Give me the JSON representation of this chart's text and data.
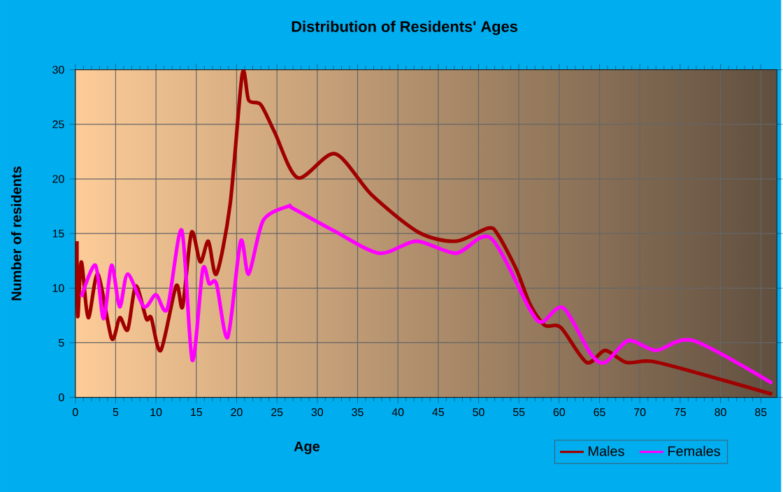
{
  "chart_data": {
    "type": "line",
    "title": "Distribution of Residents' Ages",
    "xlabel": "Age",
    "ylabel": "Number of residents",
    "xlim": [
      0,
      87
    ],
    "xticks": [
      0,
      5,
      10,
      15,
      20,
      25,
      30,
      35,
      40,
      45,
      50,
      55,
      60,
      65,
      70,
      75,
      80,
      85
    ],
    "ylim": [
      0,
      30
    ],
    "yticks": [
      0,
      5,
      10,
      15,
      20,
      25,
      30
    ],
    "grid": true,
    "legend": "bottom right",
    "marker": "none",
    "line_style": "solid",
    "series": [
      {
        "name": "Males",
        "color": "#a00000",
        "x": [
          0.2,
          0.3,
          0.75,
          1.6,
          2.8,
          4.5,
          5.5,
          6.5,
          7.5,
          8.8,
          9.4,
          10.6,
          12.5,
          13.3,
          14.4,
          15.5,
          16.5,
          17.5,
          19.2,
          20.7,
          21.5,
          23,
          24.7,
          27.6,
          32.2,
          36.8,
          42.6,
          47.2,
          51.2,
          52.4,
          54.7,
          56.4,
          58.2,
          60.2,
          63.4,
          65.7,
          68.3,
          71.5,
          77.8,
          86.4
        ],
        "values": [
          14.3,
          7.4,
          12.4,
          7.3,
          11.3,
          5.4,
          7.3,
          6.2,
          10.2,
          7.2,
          7.3,
          4.3,
          10.2,
          8.3,
          15.1,
          12.4,
          14.3,
          11.3,
          17.7,
          29.6,
          27.2,
          26.8,
          24.3,
          20.1,
          22.3,
          18.5,
          15.1,
          14.3,
          15.5,
          14.9,
          11.7,
          8.5,
          6.6,
          6.4,
          3.2,
          4.3,
          3.2,
          3.3,
          2.1,
          0.3
        ]
      },
      {
        "name": "Females",
        "color": "#ff00ff",
        "x": [
          0.75,
          2.5,
          3.5,
          4.5,
          5.5,
          6.5,
          8.5,
          10,
          11.4,
          13.2,
          14.5,
          15.8,
          16.6,
          17.5,
          18.9,
          20.5,
          21.5,
          23.3,
          26.4,
          27,
          32.2,
          37.7,
          42.3,
          47.2,
          51.5,
          56.4,
          57.9,
          60.5,
          63.9,
          65.7,
          68.6,
          72,
          76.6,
          86.4
        ],
        "values": [
          9.2,
          12.1,
          7.2,
          12.1,
          8.3,
          11.3,
          8.3,
          9.4,
          8.1,
          15.3,
          3.4,
          11.7,
          10.4,
          10.4,
          5.5,
          14.3,
          11.3,
          16.2,
          17.5,
          17.3,
          15.2,
          13.2,
          14.3,
          13.2,
          14.6,
          8.0,
          6.9,
          8.2,
          4.0,
          3.2,
          5.2,
          4.3,
          5.2,
          1.3
        ]
      }
    ]
  }
}
